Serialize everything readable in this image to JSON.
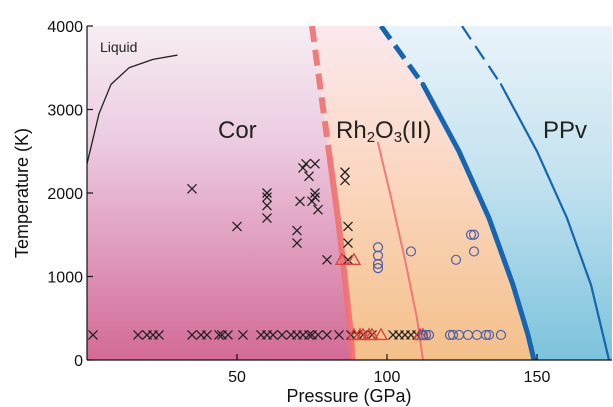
{
  "chart_data": {
    "type": "scatter",
    "title": "",
    "xlabel": "Pressure (GPa)",
    "ylabel": "Temperature (K)",
    "xlim": [
      0,
      175
    ],
    "ylim": [
      0,
      4000
    ],
    "xticks": [
      50,
      100,
      150
    ],
    "yticks": [
      0,
      1000,
      2000,
      3000,
      4000
    ],
    "xtick_labels": [
      "50",
      "100",
      "150"
    ],
    "ytick_labels": [
      "0",
      "1000",
      "2000",
      "3000",
      "4000"
    ],
    "grid": false,
    "phase_labels": {
      "liquid": "Liquid",
      "cor": "Cor",
      "rh2o3_main": "Rh",
      "rh2o3_sub": "2",
      "rh2o3_mid": "O",
      "rh2o3_sub2": "3",
      "rh2o3_tail": "(II)",
      "ppv": "PPv"
    },
    "region_colors": {
      "cor": "#d36a96",
      "rh2o3": "#f4c08a",
      "ppv": "#7cc3dc",
      "background_top": "#f3ecf5"
    },
    "boundaries": [
      {
        "id": "melting",
        "color": "#222222",
        "points": [
          [
            0,
            2350
          ],
          [
            4,
            2950
          ],
          [
            8,
            3300
          ],
          [
            14,
            3500
          ],
          [
            22,
            3600
          ],
          [
            30,
            3650
          ]
        ]
      },
      {
        "id": "cor-rh2o3-thick",
        "color": "#ef7070",
        "points": [
          [
            75,
            4000
          ],
          [
            78,
            3200
          ],
          [
            81,
            2400
          ],
          [
            84,
            1600
          ],
          [
            86.5,
            800
          ],
          [
            88,
            300
          ],
          [
            88.5,
            0
          ]
        ]
      },
      {
        "id": "cor-rh2o3-thin",
        "color": "#ef7070",
        "points": [
          [
            97,
            2600
          ],
          [
            101,
            2000
          ],
          [
            106,
            1200
          ],
          [
            110,
            500
          ],
          [
            112,
            0
          ]
        ]
      },
      {
        "id": "rh2o3-ppv-thick",
        "color": "#1565b0",
        "points": [
          [
            98,
            4000
          ],
          [
            112,
            3300
          ],
          [
            124,
            2500
          ],
          [
            134,
            1700
          ],
          [
            142,
            900
          ],
          [
            147,
            300
          ],
          [
            149,
            0
          ]
        ]
      },
      {
        "id": "rh2o3-ppv-thin",
        "color": "#1565b0",
        "points": [
          [
            125,
            4000
          ],
          [
            138,
            3300
          ],
          [
            150,
            2500
          ],
          [
            160,
            1700
          ],
          [
            168,
            900
          ],
          [
            172,
            300
          ],
          [
            174,
            0
          ]
        ]
      }
    ],
    "series": [
      {
        "marker": "x",
        "color": "#222222",
        "points": [
          [
            2,
            300
          ],
          [
            17,
            300
          ],
          [
            20,
            300
          ],
          [
            22,
            300
          ],
          [
            24,
            300
          ],
          [
            35,
            300
          ],
          [
            38,
            300
          ],
          [
            40,
            300
          ],
          [
            44,
            300
          ],
          [
            45,
            300
          ],
          [
            47,
            300
          ],
          [
            52,
            300
          ],
          [
            58,
            300
          ],
          [
            60,
            300
          ],
          [
            62,
            300
          ],
          [
            65,
            300
          ],
          [
            68,
            300
          ],
          [
            70,
            300
          ],
          [
            72,
            300
          ],
          [
            74,
            300
          ],
          [
            75,
            300
          ],
          [
            77,
            300
          ],
          [
            80,
            300
          ],
          [
            84,
            300
          ],
          [
            35,
            2050
          ],
          [
            50,
            1600
          ],
          [
            60,
            1700
          ],
          [
            60,
            1850
          ],
          [
            60,
            1950
          ],
          [
            60,
            2000
          ],
          [
            70,
            1400
          ],
          [
            70,
            1550
          ],
          [
            71,
            1900
          ],
          [
            72,
            2300
          ],
          [
            73,
            2350
          ],
          [
            74,
            2200
          ],
          [
            75,
            1900
          ],
          [
            76,
            1950
          ],
          [
            76,
            2000
          ],
          [
            76,
            2350
          ],
          [
            77,
            1800
          ],
          [
            80,
            1200
          ],
          [
            86,
            2150
          ],
          [
            86,
            2250
          ],
          [
            87,
            1600
          ],
          [
            87,
            1400
          ],
          [
            87,
            1200
          ],
          [
            88,
            300
          ],
          [
            90,
            300
          ],
          [
            92,
            300
          ],
          [
            95,
            300
          ],
          [
            102,
            300
          ],
          [
            104,
            300
          ],
          [
            106,
            300
          ],
          [
            108,
            300
          ],
          [
            110,
            300
          ]
        ]
      },
      {
        "marker": "triangle",
        "color": "#d9453f",
        "points": [
          [
            85,
            1200
          ],
          [
            89,
            1200
          ],
          [
            89,
            300
          ],
          [
            91,
            300
          ],
          [
            92,
            300
          ],
          [
            94,
            300
          ],
          [
            95,
            300
          ],
          [
            98,
            300
          ],
          [
            111,
            300
          ],
          [
            112,
            300
          ]
        ]
      },
      {
        "marker": "circle",
        "color": "#4a5fa8",
        "points": [
          [
            97,
            1100
          ],
          [
            97,
            1150
          ],
          [
            97,
            1250
          ],
          [
            97,
            1350
          ],
          [
            108,
            1300
          ],
          [
            112,
            300
          ],
          [
            113,
            300
          ],
          [
            114,
            300
          ],
          [
            121,
            300
          ],
          [
            122,
            300
          ],
          [
            123,
            1200
          ],
          [
            124,
            300
          ],
          [
            127,
            300
          ],
          [
            128,
            1500
          ],
          [
            129,
            1500
          ],
          [
            129,
            1300
          ],
          [
            130,
            300
          ],
          [
            133,
            300
          ],
          [
            134,
            300
          ],
          [
            138,
            300
          ]
        ]
      }
    ]
  }
}
